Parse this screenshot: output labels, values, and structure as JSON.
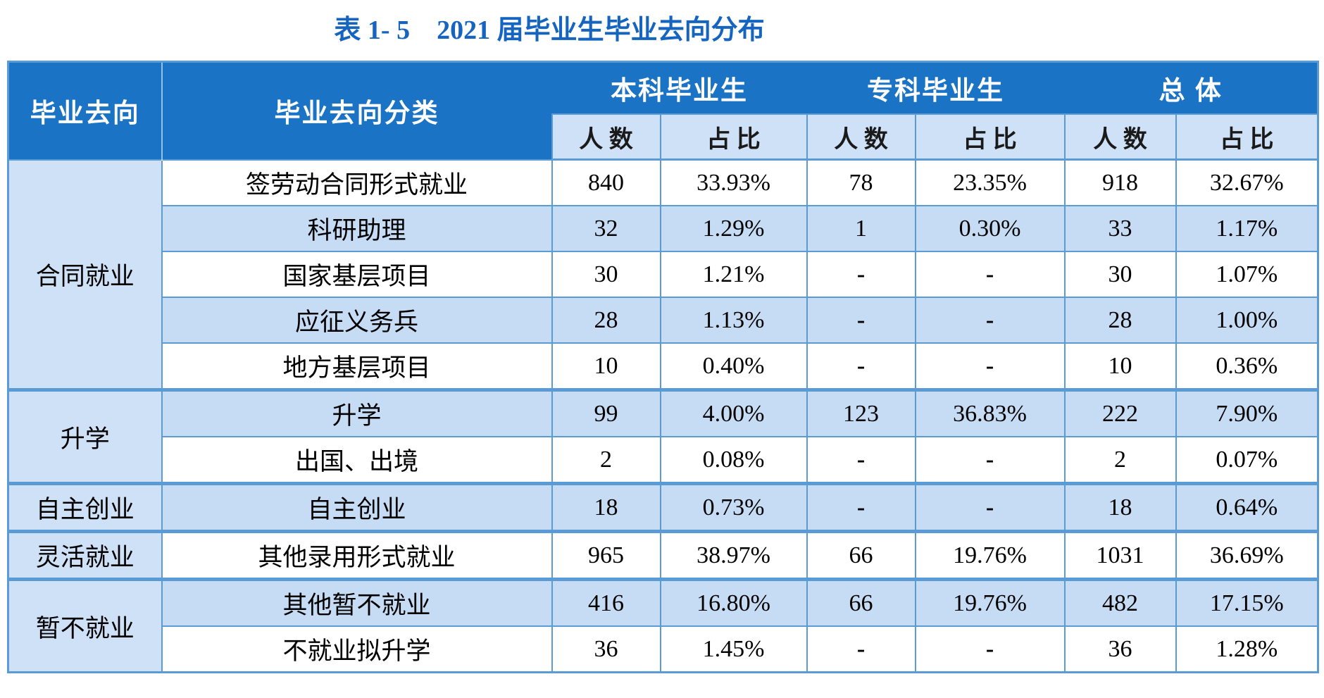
{
  "title": "表 1- 5    2021 届毕业生毕业去向分布",
  "colors": {
    "header_bg": "#1a73c5",
    "border": "#5b9bd5",
    "subheader_bg": "#cfe1f7",
    "row_alt_bg": "#c6dcf5",
    "title": "#1565c0"
  },
  "table": {
    "col_headers": {
      "destination": "毕业去向",
      "category": "毕业去向分类",
      "groups": [
        {
          "label": "本科毕业生"
        },
        {
          "label": "专科毕业生"
        },
        {
          "label": "总 体"
        }
      ],
      "sub": {
        "count": "人 数",
        "ratio": "占 比"
      }
    },
    "groups": [
      {
        "destination": "合同就业",
        "rows": [
          {
            "category": "签劳动合同形式就业",
            "values": [
              "840",
              "33.93%",
              "78",
              "23.35%",
              "918",
              "32.67%"
            ]
          },
          {
            "category": "科研助理",
            "values": [
              "32",
              "1.29%",
              "1",
              "0.30%",
              "33",
              "1.17%"
            ]
          },
          {
            "category": "国家基层项目",
            "values": [
              "30",
              "1.21%",
              "-",
              "-",
              "30",
              "1.07%"
            ]
          },
          {
            "category": "应征义务兵",
            "values": [
              "28",
              "1.13%",
              "-",
              "-",
              "28",
              "1.00%"
            ]
          },
          {
            "category": "地方基层项目",
            "values": [
              "10",
              "0.40%",
              "-",
              "-",
              "10",
              "0.36%"
            ]
          }
        ]
      },
      {
        "destination": "升学",
        "rows": [
          {
            "category": "升学",
            "values": [
              "99",
              "4.00%",
              "123",
              "36.83%",
              "222",
              "7.90%"
            ]
          },
          {
            "category": "出国、出境",
            "values": [
              "2",
              "0.08%",
              "-",
              "-",
              "2",
              "0.07%"
            ]
          }
        ]
      },
      {
        "destination": "自主创业",
        "rows": [
          {
            "category": "自主创业",
            "values": [
              "18",
              "0.73%",
              "-",
              "-",
              "18",
              "0.64%"
            ]
          }
        ]
      },
      {
        "destination": "灵活就业",
        "rows": [
          {
            "category": "其他录用形式就业",
            "values": [
              "965",
              "38.97%",
              "66",
              "19.76%",
              "1031",
              "36.69%"
            ]
          }
        ]
      },
      {
        "destination": "暂不就业",
        "rows": [
          {
            "category": "其他暂不就业",
            "values": [
              "416",
              "16.80%",
              "66",
              "19.76%",
              "482",
              "17.15%"
            ]
          },
          {
            "category": "不就业拟升学",
            "values": [
              "36",
              "1.45%",
              "-",
              "-",
              "36",
              "1.28%"
            ]
          }
        ]
      }
    ]
  }
}
